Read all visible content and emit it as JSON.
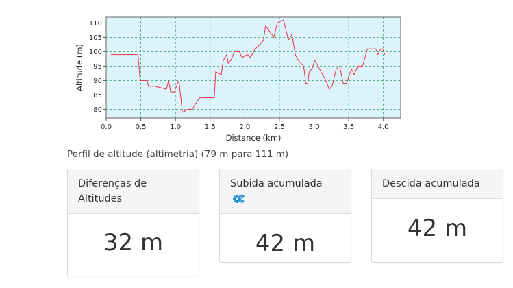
{
  "chart_data": {
    "type": "line",
    "xlabel": "Distance (km)",
    "ylabel": "Altitude (m)",
    "xlim": [
      0,
      4.25
    ],
    "ylim": [
      77,
      112
    ],
    "xticks": [
      "0.0",
      "0.5",
      "1.0",
      "1.5",
      "2.0",
      "2.5",
      "3.0",
      "3.5",
      "4.0"
    ],
    "yticks": [
      "80",
      "85",
      "90",
      "95",
      "100",
      "105",
      "110"
    ],
    "grid": true,
    "background_color": "#dcf3fb",
    "line_color": "#ee3344",
    "grid_color": "#2e9d5c",
    "x": [
      0.07,
      0.46,
      0.49,
      0.59,
      0.61,
      0.7,
      0.87,
      0.9,
      0.93,
      0.98,
      1.05,
      1.1,
      1.11,
      1.18,
      1.24,
      1.32,
      1.35,
      1.4,
      1.43,
      1.56,
      1.58,
      1.66,
      1.69,
      1.74,
      1.76,
      1.8,
      1.85,
      1.92,
      1.96,
      2.04,
      2.08,
      2.15,
      2.2,
      2.27,
      2.3,
      2.42,
      2.47,
      2.56,
      2.63,
      2.68,
      2.73,
      2.77,
      2.85,
      2.88,
      2.91,
      2.93,
      2.97,
      3.01,
      3.06,
      3.1,
      3.17,
      3.22,
      3.26,
      3.32,
      3.37,
      3.42,
      3.47,
      3.51,
      3.54,
      3.58,
      3.63,
      3.66,
      3.7,
      3.77,
      3.81,
      3.89,
      3.92,
      3.96,
      3.99,
      4.02
    ],
    "y": [
      99,
      99,
      90,
      90,
      88,
      88,
      87,
      90,
      86,
      86,
      90,
      79,
      79,
      80,
      80,
      83,
      84,
      84,
      84,
      84,
      93,
      92,
      97,
      99,
      96,
      97,
      100,
      100,
      98,
      99,
      98,
      101,
      102,
      104,
      109,
      105,
      110,
      111,
      104,
      106,
      99,
      97,
      95,
      89,
      89,
      93,
      94,
      97,
      95,
      93,
      90,
      87,
      88,
      94,
      95,
      89,
      89,
      92,
      94,
      92,
      95,
      95,
      95,
      101,
      101,
      101,
      99,
      101,
      101,
      99
    ],
    "title": "",
    "caption": "Perfil de altitude (altimetria) (79 m para 111 m)"
  },
  "cards": [
    {
      "title": "Diferenças de Altitudes",
      "value": "32 m",
      "icon": ""
    },
    {
      "title": "Subida acumulada",
      "value": "42 m",
      "icon": "gears-icon"
    },
    {
      "title": "Descida acumulada",
      "value": "42 m",
      "icon": ""
    }
  ],
  "accent_colors": {
    "gear_icon": "#1f8fd6"
  }
}
